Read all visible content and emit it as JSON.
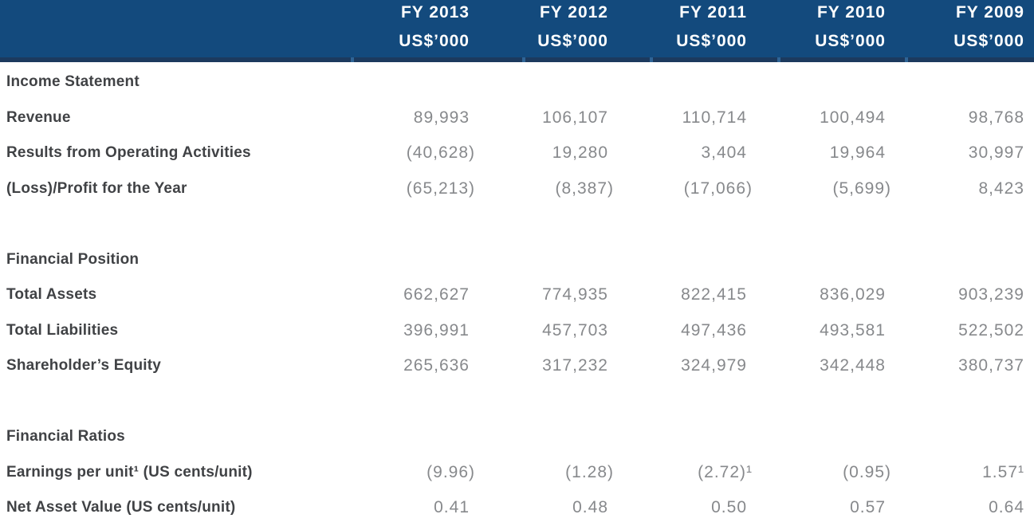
{
  "colors": {
    "header_bg": "#134a7d",
    "header_divider": "#1c3a5e",
    "column_tick": "#2f6496",
    "header_text": "#ffffff",
    "label_text": "#404245",
    "value_text": "#87898c"
  },
  "header": {
    "columns": [
      {
        "year": "FY 2013",
        "unit": "US$’000"
      },
      {
        "year": "FY 2012",
        "unit": "US$’000"
      },
      {
        "year": "FY 2011",
        "unit": "US$’000"
      },
      {
        "year": "FY 2010",
        "unit": "US$’000"
      },
      {
        "year": "FY 2009",
        "unit": "US$’000"
      }
    ]
  },
  "sections": [
    {
      "title": "Income Statement",
      "rows": [
        {
          "label": "Revenue",
          "values": [
            "89,993",
            "106,107",
            "110,714",
            "100,494",
            "98,768"
          ]
        },
        {
          "label": "Results from Operating Activities",
          "values": [
            "(40,628)",
            "19,280",
            "3,404",
            "19,964",
            "30,997"
          ]
        },
        {
          "label": "(Loss)/Profit for the Year",
          "values": [
            "(65,213)",
            "(8,387)",
            "(17,066)",
            "(5,699)",
            "8,423"
          ]
        }
      ]
    },
    {
      "title": "Financial Position",
      "rows": [
        {
          "label": "Total Assets",
          "values": [
            "662,627",
            "774,935",
            "822,415",
            "836,029",
            "903,239"
          ]
        },
        {
          "label": "Total Liabilities",
          "values": [
            "396,991",
            "457,703",
            "497,436",
            "493,581",
            "522,502"
          ]
        },
        {
          "label": "Shareholder’s Equity",
          "values": [
            "265,636",
            "317,232",
            "324,979",
            "342,448",
            "380,737"
          ]
        }
      ]
    },
    {
      "title": "Financial Ratios",
      "rows": [
        {
          "label": "Earnings per unit¹ (US cents/unit)",
          "values": [
            "(9.96)",
            "(1.28)",
            "(2.72)¹",
            "(0.95)",
            "1.57¹"
          ]
        },
        {
          "label": "Net Asset Value (US cents/unit)",
          "values": [
            "0.41",
            "0.48",
            "0.50",
            "0.57",
            "0.64"
          ]
        }
      ]
    }
  ]
}
